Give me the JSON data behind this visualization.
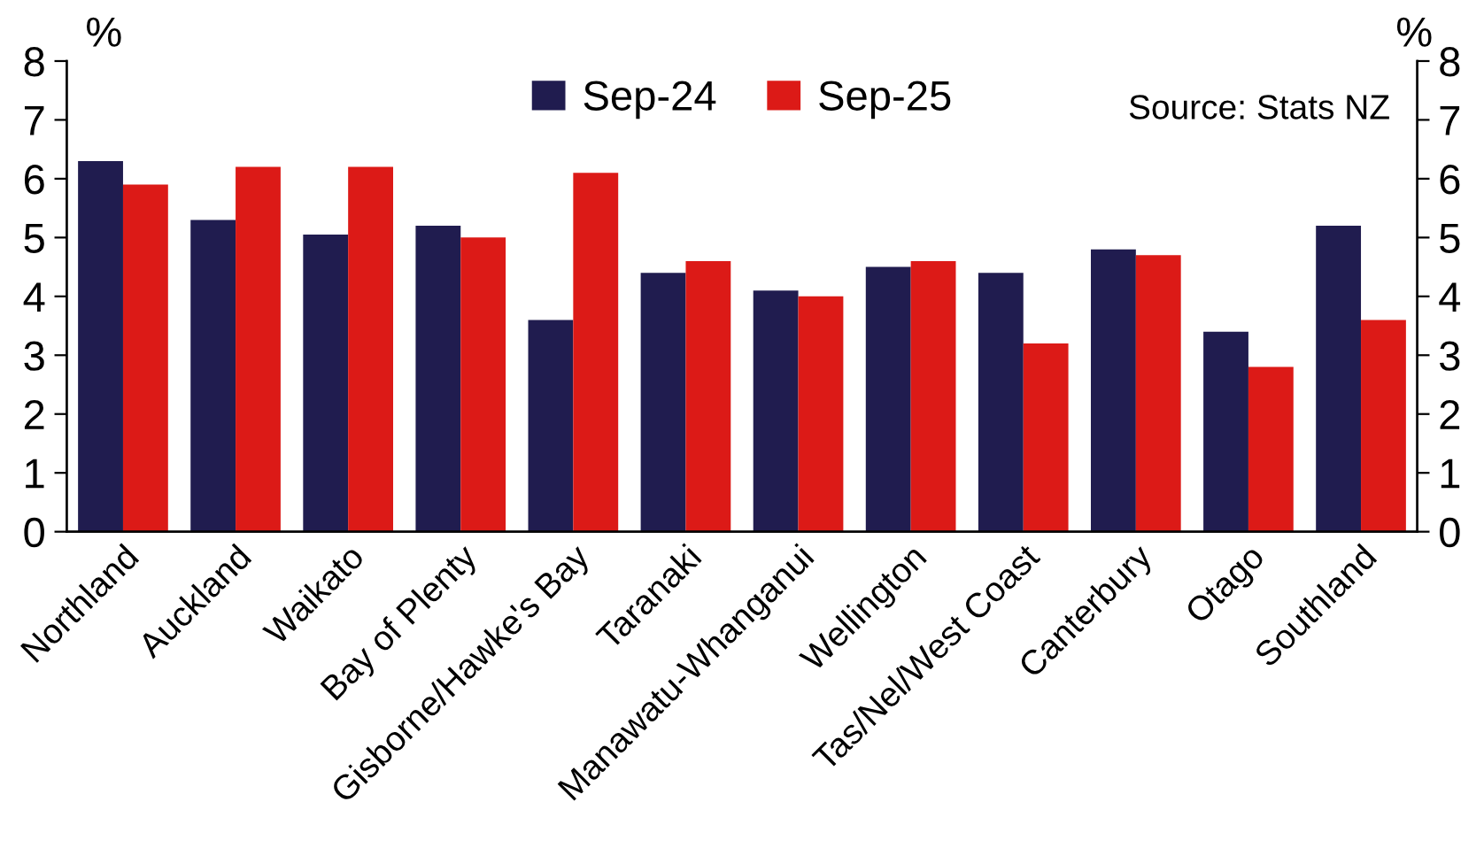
{
  "chart_data": {
    "type": "bar",
    "ylabel": "%",
    "y2label": "%",
    "categories": [
      "Northland",
      "Auckland",
      "Waikato",
      "Bay of Plenty",
      "Gisborne/Hawke's Bay",
      "Taranaki",
      "Manawatu-Whanganui",
      "Wellington",
      "Tas/Nel/West Coast",
      "Canterbury",
      "Otago",
      "Southland"
    ],
    "series": [
      {
        "name": "Sep-24",
        "color": "#201c4f",
        "values": [
          6.3,
          5.3,
          5.05,
          5.2,
          3.6,
          4.4,
          4.1,
          4.5,
          4.4,
          4.8,
          3.4,
          5.2
        ]
      },
      {
        "name": "Sep-25",
        "color": "#dc1a17",
        "values": [
          5.9,
          6.2,
          6.2,
          5.0,
          6.1,
          4.6,
          4.0,
          4.6,
          3.2,
          4.7,
          2.8,
          3.6
        ]
      }
    ],
    "ylim": [
      0,
      8
    ],
    "yticks": [
      0,
      1,
      2,
      3,
      4,
      5,
      6,
      7,
      8
    ],
    "y2lim": [
      0,
      8
    ],
    "y2ticks": [
      0,
      1,
      2,
      3,
      4,
      5,
      6,
      7,
      8
    ],
    "annotations": [
      "Source: Stats NZ"
    ],
    "grid": false,
    "legend": "top"
  }
}
